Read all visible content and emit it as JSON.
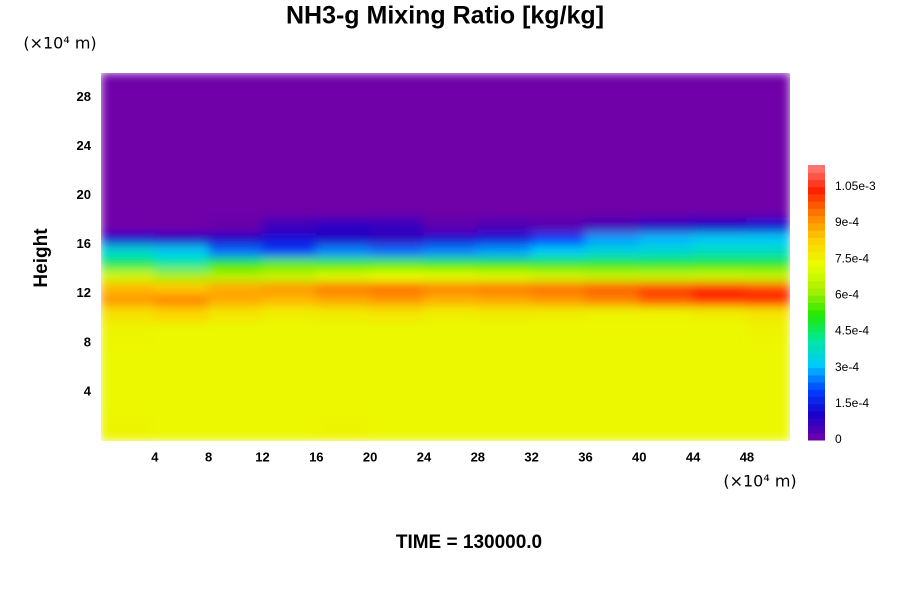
{
  "chart_data": {
    "type": "heatmap",
    "title": "NH3-g Mixing Ratio [kg/kg]",
    "ylabel": "Height",
    "y_unit": "(×10⁴ m)",
    "x_unit": "(×10⁴ m)",
    "footer": "TIME = 130000.0",
    "xlim": [
      0,
      51.2
    ],
    "xticks": [
      4,
      8,
      12,
      16,
      20,
      24,
      28,
      32,
      36,
      40,
      44,
      48
    ],
    "ylim": [
      0,
      30
    ],
    "yticks": [
      4,
      8,
      12,
      16,
      20,
      24,
      28
    ],
    "clim": [
      0,
      0.00114
    ],
    "cticks": [
      0,
      {
        "value": 0.00015,
        "label": "1.5e-4"
      },
      {
        "value": 0.0003,
        "label": "3e-4"
      },
      {
        "value": 0.00045,
        "label": "4.5e-4"
      },
      {
        "value": 0.0006,
        "label": "6e-4"
      },
      {
        "value": 0.00075,
        "label": "7.5e-4"
      },
      {
        "value": 0.0009,
        "label": "9e-4"
      },
      {
        "value": 0.00105,
        "label": "1.05e-3"
      }
    ],
    "colormap": [
      "#7000a8",
      "#1a00c8",
      "#0040ff",
      "#00c8ff",
      "#00e8a0",
      "#20e800",
      "#a8f000",
      "#e8ff00",
      "#ffd000",
      "#ff8000",
      "#ff2000",
      "#ff8080"
    ],
    "x": [
      2,
      6,
      10,
      14,
      18,
      22,
      26,
      30,
      34,
      38,
      42,
      46,
      50
    ],
    "y": [
      1,
      3,
      5,
      7,
      9,
      10.5,
      11.5,
      12.5,
      13.5,
      14.5,
      15.5,
      16.5,
      17.5,
      19,
      21,
      23,
      25,
      27,
      29
    ],
    "z": [
      [
        0.00075,
        0.00074,
        0.00074,
        0.00074,
        0.00075,
        0.00074,
        0.00074,
        0.00074,
        0.00074,
        0.00074,
        0.00074,
        0.00074,
        0.00074
      ],
      [
        0.00074,
        0.00074,
        0.00074,
        0.00074,
        0.00074,
        0.00074,
        0.00074,
        0.00074,
        0.00074,
        0.00074,
        0.00074,
        0.00074,
        0.00074
      ],
      [
        0.00074,
        0.00074,
        0.00074,
        0.00074,
        0.00074,
        0.00074,
        0.00074,
        0.00074,
        0.00074,
        0.00074,
        0.00074,
        0.00074,
        0.00074
      ],
      [
        0.00074,
        0.00074,
        0.00074,
        0.00074,
        0.00074,
        0.00074,
        0.00074,
        0.00074,
        0.00074,
        0.00074,
        0.00074,
        0.00074,
        0.00074
      ],
      [
        0.00075,
        0.00074,
        0.00074,
        0.00074,
        0.00074,
        0.00074,
        0.00074,
        0.00074,
        0.00074,
        0.00074,
        0.00074,
        0.00074,
        0.00075
      ],
      [
        0.00079,
        0.00082,
        0.00078,
        0.00076,
        0.00077,
        0.00078,
        0.00076,
        0.00077,
        0.00076,
        0.00075,
        0.00075,
        0.00076,
        0.00078
      ],
      [
        0.0009,
        0.00093,
        0.00088,
        0.00086,
        0.00088,
        0.0009,
        0.00087,
        0.00088,
        0.0009,
        0.00093,
        0.00098,
        0.00102,
        0.00104
      ],
      [
        0.00086,
        0.00084,
        0.00088,
        0.0009,
        0.00094,
        0.00095,
        0.00093,
        0.00094,
        0.00095,
        0.00097,
        0.001,
        0.00103,
        0.001
      ],
      [
        0.00068,
        0.00062,
        0.00064,
        0.00066,
        0.0007,
        0.00072,
        0.00071,
        0.0007,
        0.00068,
        0.00066,
        0.00066,
        0.00067,
        0.00066
      ],
      [
        0.00046,
        0.00042,
        0.00052,
        0.00056,
        0.00054,
        0.00055,
        0.00053,
        0.00052,
        0.0005,
        0.0005,
        0.00049,
        0.0005,
        0.0005
      ],
      [
        0.00036,
        0.00032,
        0.00024,
        0.0002,
        0.00026,
        0.00024,
        0.00026,
        0.00028,
        0.00032,
        0.00035,
        0.00036,
        0.00038,
        0.00038
      ],
      [
        0.00012,
        0.0001,
        0.0001,
        0.00013,
        0.0001,
        8e-05,
        0.00012,
        0.00014,
        0.0002,
        0.00028,
        0.0003,
        0.00032,
        0.00032
      ],
      [
        0,
        0,
        1e-05,
        6e-05,
        8e-05,
        7e-05,
        2e-05,
        4e-05,
        3e-05,
        5e-05,
        8e-05,
        0.0001,
        0.00012
      ],
      [
        0,
        0,
        0,
        0,
        0,
        0,
        0,
        0,
        0,
        0,
        0,
        0,
        0
      ],
      [
        0,
        0,
        0,
        0,
        0,
        0,
        0,
        0,
        0,
        0,
        0,
        0,
        0
      ],
      [
        0,
        0,
        0,
        0,
        0,
        0,
        0,
        0,
        0,
        0,
        0,
        0,
        0
      ],
      [
        0,
        0,
        0,
        0,
        0,
        0,
        0,
        0,
        0,
        0,
        0,
        0,
        0
      ],
      [
        0,
        0,
        0,
        0,
        0,
        0,
        0,
        0,
        0,
        0,
        0,
        0,
        0
      ],
      [
        0,
        0,
        0,
        0,
        0,
        0,
        0,
        0,
        0,
        0,
        0,
        0,
        0
      ]
    ]
  }
}
